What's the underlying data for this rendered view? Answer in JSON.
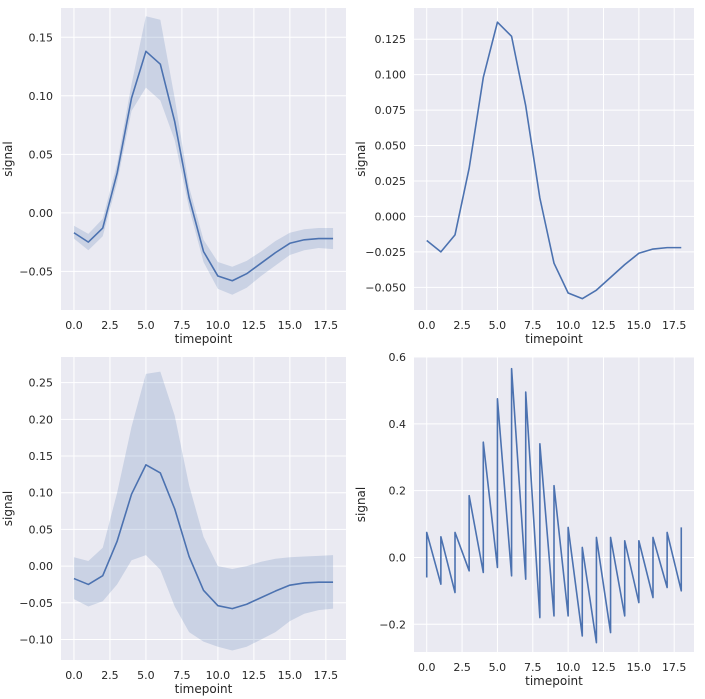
{
  "chart_data": [
    {
      "type": "line",
      "style": "seaborn darkgrid",
      "background_color": "#eaeaf2",
      "line_color": "#4c72b0",
      "band_color": "#4c72b0",
      "xlabel": "timepoint",
      "ylabel": "signal",
      "xlim": [
        -0.9,
        18.9
      ],
      "ylim": [
        -0.083,
        0.175
      ],
      "xticks": [
        0,
        2.5,
        5,
        7.5,
        10,
        12.5,
        15,
        17.5
      ],
      "xtick_labels": [
        "0.0",
        "2.5",
        "5.0",
        "7.5",
        "10.0",
        "12.5",
        "15.0",
        "17.5"
      ],
      "yticks": [
        -0.05,
        0,
        0.05,
        0.1,
        0.15
      ],
      "ytick_labels": [
        "−0.05",
        "0.00",
        "0.05",
        "0.10",
        "0.15"
      ],
      "x": [
        0,
        1,
        2,
        3,
        4,
        5,
        6,
        7,
        8,
        9,
        10,
        11,
        12,
        13,
        14,
        15,
        16,
        17,
        18
      ],
      "series": [
        {
          "values": [
            -0.017,
            -0.025,
            -0.013,
            0.034,
            0.098,
            0.138,
            0.127,
            0.078,
            0.013,
            -0.033,
            -0.054,
            -0.058,
            -0.052,
            -0.043,
            -0.034,
            -0.026,
            -0.023,
            -0.022,
            -0.022
          ],
          "ci_low": [
            -0.022,
            -0.032,
            -0.02,
            0.026,
            0.087,
            0.107,
            0.096,
            0.062,
            0.004,
            -0.042,
            -0.065,
            -0.07,
            -0.064,
            -0.054,
            -0.045,
            -0.036,
            -0.032,
            -0.03,
            -0.031
          ],
          "ci_high": [
            -0.011,
            -0.018,
            -0.005,
            0.042,
            0.11,
            0.168,
            0.165,
            0.098,
            0.022,
            -0.023,
            -0.042,
            -0.046,
            -0.041,
            -0.033,
            -0.024,
            -0.017,
            -0.014,
            -0.013,
            -0.013
          ]
        }
      ]
    },
    {
      "type": "line",
      "style": "seaborn darkgrid",
      "background_color": "#eaeaf2",
      "line_color": "#4c72b0",
      "xlabel": "timepoint",
      "ylabel": "signal",
      "xlim": [
        -0.9,
        18.9
      ],
      "ylim": [
        -0.066,
        0.147
      ],
      "xticks": [
        0,
        2.5,
        5,
        7.5,
        10,
        12.5,
        15,
        17.5
      ],
      "xtick_labels": [
        "0.0",
        "2.5",
        "5.0",
        "7.5",
        "10.0",
        "12.5",
        "15.0",
        "17.5"
      ],
      "yticks": [
        -0.05,
        -0.025,
        0,
        0.025,
        0.05,
        0.075,
        0.1,
        0.125
      ],
      "ytick_labels": [
        "−0.050",
        "−0.025",
        "0.000",
        "0.025",
        "0.050",
        "0.075",
        "0.100",
        "0.125"
      ],
      "x": [
        0,
        1,
        2,
        3,
        4,
        5,
        6,
        7,
        8,
        9,
        10,
        11,
        12,
        13,
        14,
        15,
        16,
        17,
        18
      ],
      "series": [
        {
          "values": [
            -0.017,
            -0.025,
            -0.013,
            0.034,
            0.098,
            0.137,
            0.127,
            0.078,
            0.013,
            -0.033,
            -0.054,
            -0.058,
            -0.052,
            -0.043,
            -0.034,
            -0.026,
            -0.023,
            -0.022,
            -0.022
          ]
        }
      ]
    },
    {
      "type": "line",
      "style": "seaborn darkgrid",
      "background_color": "#eaeaf2",
      "line_color": "#4c72b0",
      "band_color": "#4c72b0",
      "xlabel": "timepoint",
      "ylabel": "signal",
      "xlim": [
        -0.9,
        18.9
      ],
      "ylim": [
        -0.128,
        0.285
      ],
      "xticks": [
        0,
        2.5,
        5,
        7.5,
        10,
        12.5,
        15,
        17.5
      ],
      "xtick_labels": [
        "0.0",
        "2.5",
        "5.0",
        "7.5",
        "10.0",
        "12.5",
        "15.0",
        "17.5"
      ],
      "yticks": [
        -0.1,
        -0.05,
        0,
        0.05,
        0.1,
        0.15,
        0.2,
        0.25
      ],
      "ytick_labels": [
        "−0.10",
        "−0.05",
        "0.00",
        "0.05",
        "0.10",
        "0.15",
        "0.20",
        "0.25"
      ],
      "x": [
        0,
        1,
        2,
        3,
        4,
        5,
        6,
        7,
        8,
        9,
        10,
        11,
        12,
        13,
        14,
        15,
        16,
        17,
        18
      ],
      "series": [
        {
          "values": [
            -0.017,
            -0.025,
            -0.013,
            0.034,
            0.098,
            0.138,
            0.127,
            0.078,
            0.013,
            -0.033,
            -0.054,
            -0.058,
            -0.052,
            -0.043,
            -0.034,
            -0.026,
            -0.023,
            -0.022,
            -0.022
          ],
          "ci_low": [
            -0.045,
            -0.055,
            -0.048,
            -0.025,
            0.008,
            0.015,
            -0.005,
            -0.055,
            -0.09,
            -0.103,
            -0.11,
            -0.115,
            -0.11,
            -0.1,
            -0.09,
            -0.075,
            -0.065,
            -0.06,
            -0.058
          ],
          "ci_high": [
            0.012,
            0.007,
            0.025,
            0.1,
            0.19,
            0.262,
            0.265,
            0.205,
            0.11,
            0.04,
            0.0,
            -0.004,
            0.0,
            0.006,
            0.01,
            0.012,
            0.013,
            0.014,
            0.015
          ]
        }
      ]
    },
    {
      "type": "line",
      "style": "seaborn darkgrid",
      "background_color": "#eaeaf2",
      "line_color": "#4c72b0",
      "xlabel": "timepoint",
      "ylabel": "signal",
      "xlim": [
        -0.9,
        18.9
      ],
      "ylim": [
        -0.283,
        0.6
      ],
      "xticks": [
        0,
        2.5,
        5,
        7.5,
        10,
        12.5,
        15,
        17.5
      ],
      "xtick_labels": [
        "0.0",
        "2.5",
        "5.0",
        "7.5",
        "10.0",
        "12.5",
        "15.0",
        "17.5"
      ],
      "yticks": [
        -0.2,
        0,
        0.2,
        0.4,
        0.6
      ],
      "ytick_labels": [
        "−0.2",
        "0.0",
        "0.2",
        "0.4",
        "0.6"
      ],
      "series": [
        {
          "points": [
            [
              0,
              -0.06
            ],
            [
              0,
              0.075
            ],
            [
              1,
              -0.08
            ],
            [
              1,
              0.062
            ],
            [
              2,
              -0.105
            ],
            [
              2,
              0.075
            ],
            [
              3,
              -0.04
            ],
            [
              3,
              0.185
            ],
            [
              4,
              -0.045
            ],
            [
              4,
              0.345
            ],
            [
              5,
              -0.03
            ],
            [
              5,
              0.475
            ],
            [
              6,
              -0.055
            ],
            [
              6,
              0.565
            ],
            [
              7,
              -0.065
            ],
            [
              7,
              0.495
            ],
            [
              8,
              -0.18
            ],
            [
              8,
              0.34
            ],
            [
              9,
              -0.175
            ],
            [
              9,
              0.215
            ],
            [
              10,
              -0.175
            ],
            [
              10,
              0.09
            ],
            [
              11,
              -0.235
            ],
            [
              11,
              0.03
            ],
            [
              12,
              -0.255
            ],
            [
              12,
              0.06
            ],
            [
              13,
              -0.225
            ],
            [
              13,
              0.06
            ],
            [
              14,
              -0.175
            ],
            [
              14,
              0.05
            ],
            [
              15,
              -0.135
            ],
            [
              15,
              0.05
            ],
            [
              16,
              -0.12
            ],
            [
              16,
              0.06
            ],
            [
              17,
              -0.09
            ],
            [
              17,
              0.075
            ],
            [
              18,
              -0.1
            ],
            [
              18,
              0.09
            ]
          ]
        }
      ]
    }
  ]
}
